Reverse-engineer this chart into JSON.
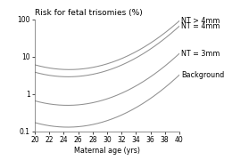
{
  "title": "Risk for fetal trisomies (%)",
  "xlabel": "Maternal age (yrs)",
  "xmin": 20,
  "xmax": 40,
  "ymin": 0.1,
  "ymax": 100,
  "xticks": [
    20,
    22,
    24,
    26,
    28,
    30,
    32,
    34,
    36,
    38,
    40
  ],
  "yticks": [
    0.1,
    1,
    10,
    100
  ],
  "curves": [
    {
      "label": "NT > 4mm",
      "a": 6.5,
      "b": -0.04,
      "c": 0.12,
      "x_min": 26.5
    },
    {
      "label": "NT = 4mm",
      "a": 4.2,
      "b": -0.04,
      "c": 0.12,
      "x_min": 26.5
    },
    {
      "label": "NT = 3mm",
      "a": 0.75,
      "b": -0.04,
      "c": 0.12,
      "x_min": 26.5
    },
    {
      "label": "Background",
      "a": 0.185,
      "b": -0.04,
      "c": 0.12,
      "x_min": 26.5
    }
  ],
  "line_color": "#909090",
  "label_fontsize": 5.8,
  "tick_fontsize": 5.5,
  "title_fontsize": 6.5,
  "background_color": "#ffffff"
}
